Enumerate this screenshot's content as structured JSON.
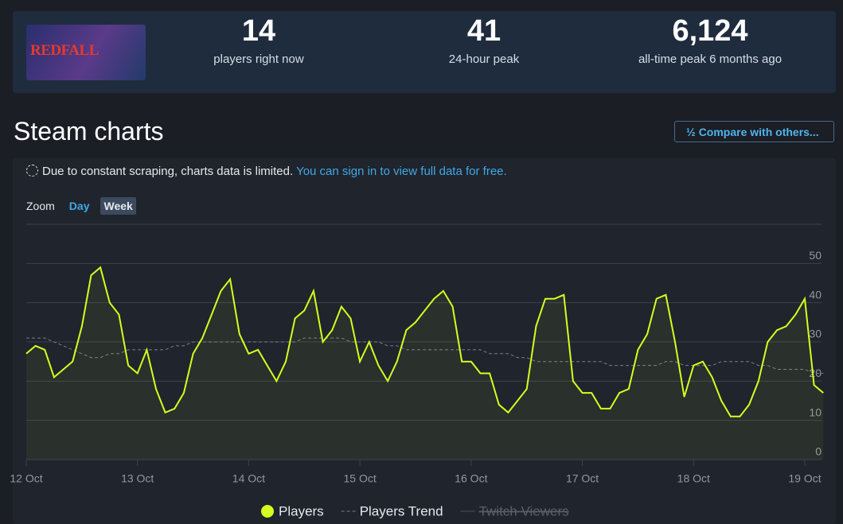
{
  "header": {
    "game": "REDFALL",
    "stats": [
      {
        "value": "14",
        "label": "players right now"
      },
      {
        "value": "41",
        "label": "24-hour peak"
      },
      {
        "value": "6,124",
        "label": "all-time peak 6 months ago"
      }
    ]
  },
  "section_title": "Steam charts",
  "compare_button": "Compare with others...",
  "notice": {
    "text": "Due to constant scraping, charts data is limited.",
    "link": "You can sign in to view full data for free."
  },
  "zoom": {
    "label": "Zoom",
    "options": [
      "Day",
      "Week"
    ]
  },
  "chart_data": {
    "type": "line",
    "categories": [
      "12 Oct",
      null,
      null,
      null,
      null,
      null,
      null,
      null,
      null,
      null,
      null,
      null,
      "13 Oct",
      null,
      null,
      null,
      null,
      null,
      null,
      null,
      null,
      null,
      null,
      null,
      "14 Oct",
      null,
      null,
      null,
      null,
      null,
      null,
      null,
      null,
      null,
      null,
      null,
      "15 Oct",
      null,
      null,
      null,
      null,
      null,
      null,
      null,
      null,
      null,
      null,
      null,
      "16 Oct",
      null,
      null,
      null,
      null,
      null,
      null,
      null,
      null,
      null,
      null,
      null,
      "17 Oct",
      null,
      null,
      null,
      null,
      null,
      null,
      null,
      null,
      null,
      null,
      null,
      "18 Oct",
      null,
      null,
      null,
      null,
      null,
      null,
      null,
      null,
      null,
      null,
      null,
      "19 Oct",
      null,
      null
    ],
    "series": [
      {
        "name": "Players",
        "color": "#d4ff1f",
        "values": [
          27,
          29,
          28,
          21,
          23,
          25,
          34,
          47,
          49,
          40,
          37,
          24,
          22,
          28,
          18,
          12,
          13,
          17,
          27,
          31,
          37,
          43,
          46,
          32,
          27,
          28,
          24,
          20,
          25,
          36,
          38,
          43,
          30,
          33,
          39,
          36,
          25,
          30,
          24,
          20,
          25,
          33,
          35,
          38,
          41,
          43,
          39,
          25,
          25,
          22,
          22,
          14,
          12,
          15,
          18,
          34,
          41,
          41,
          42,
          20,
          17,
          17,
          13,
          13,
          17,
          18,
          28,
          32,
          41,
          42,
          30,
          16,
          24,
          25,
          21,
          15,
          11,
          11,
          14,
          20,
          30,
          33,
          34,
          37,
          41,
          19,
          17
        ]
      },
      {
        "name": "Players Trend",
        "color": "#7a7f87",
        "dashed": true,
        "values": [
          31,
          31,
          31,
          30,
          29,
          28,
          27,
          26,
          26,
          27,
          27,
          28,
          28,
          28,
          28,
          28,
          29,
          29,
          30,
          30,
          30,
          30,
          30,
          30,
          30,
          30,
          30,
          30,
          30,
          30,
          31,
          31,
          31,
          31,
          31,
          30,
          30,
          30,
          30,
          29,
          29,
          28,
          28,
          28,
          28,
          28,
          28,
          28,
          28,
          28,
          27,
          27,
          27,
          26,
          26,
          25,
          25,
          25,
          25,
          25,
          25,
          25,
          25,
          24,
          24,
          24,
          24,
          24,
          24,
          25,
          25,
          24,
          24,
          24,
          24,
          25,
          25,
          25,
          25,
          24,
          24,
          23,
          23,
          23,
          23,
          22,
          22
        ]
      }
    ],
    "hidden_series": [
      {
        "name": "Twitch Viewers"
      }
    ],
    "ylim": [
      0,
      60
    ],
    "yticks": [
      0,
      10,
      20,
      30,
      40,
      50
    ],
    "grid": true
  }
}
